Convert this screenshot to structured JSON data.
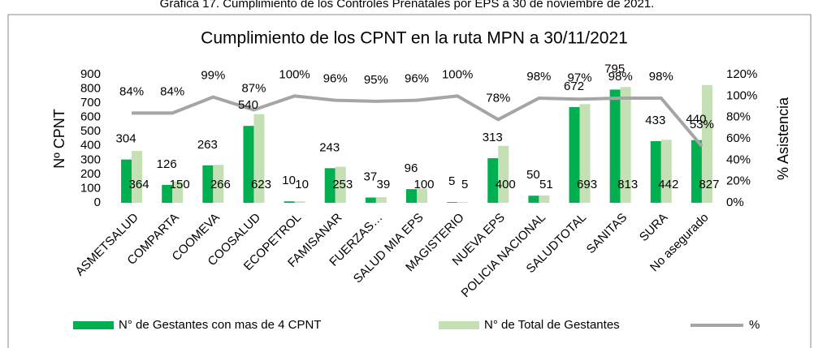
{
  "chart_data": {
    "type": "bar",
    "caption": "Gráfica 17. Cumplimiento de los Controles Prenatales por EPS a 30 de noviembre de 2021.",
    "title": "Cumplimiento de los CPNT en la ruta MPN a 30/11/2021",
    "ylabel": "Nº  CPNT",
    "y2label": "% Asistencia",
    "categories": [
      "ASMETSALUD",
      "COMPARTA",
      "COOMEVA",
      "COOSALUD",
      "ECOPETROL",
      "FAMISANAR",
      "FUERZAS…",
      "SALUD MIA EPS",
      "MAGISTERIO",
      "NUEVA EPS",
      "POLICIA NACIONAL",
      "SALUDTOTAL",
      "SANITAS",
      "SURA",
      "No asegurado"
    ],
    "series": [
      {
        "name": "N° de Gestantes con mas de 4 CPNT",
        "color": "#00b050",
        "values": [
          304,
          126,
          263,
          540,
          10,
          243,
          37,
          96,
          5,
          313,
          50,
          672,
          795,
          433,
          440
        ]
      },
      {
        "name": "N° de Total de Gestantes",
        "color": "#c5e0b4",
        "values": [
          364,
          150,
          266,
          623,
          10,
          253,
          39,
          100,
          5,
          400,
          51,
          693,
          813,
          442,
          827
        ]
      },
      {
        "name": "%",
        "color": "#a5a5a5",
        "axis": "y2",
        "type": "line",
        "values": [
          84,
          84,
          99,
          87,
          100,
          96,
          95,
          96,
          100,
          78,
          98,
          97,
          98,
          98,
          53
        ],
        "value_labels": [
          "84%",
          "84%",
          "99%",
          "87%",
          "100%",
          "96%",
          "95%",
          "96%",
          "100%",
          "78%",
          "98%",
          "97%",
          "98%",
          "98%",
          "53%"
        ]
      }
    ],
    "ylim": [
      0,
      900
    ],
    "yticks": [
      0,
      100,
      200,
      300,
      400,
      500,
      600,
      700,
      800,
      900
    ],
    "y2lim": [
      0,
      120
    ],
    "y2ticks": [
      {
        "value": 0,
        "label": "0%"
      },
      {
        "value": 20,
        "label": "20%"
      },
      {
        "value": 40,
        "label": "40%"
      },
      {
        "value": 60,
        "label": "60%"
      },
      {
        "value": 80,
        "label": "80%"
      },
      {
        "value": 100,
        "label": "100%"
      },
      {
        "value": 120,
        "label": "120%"
      }
    ],
    "grid": false,
    "legend": "bottom"
  }
}
